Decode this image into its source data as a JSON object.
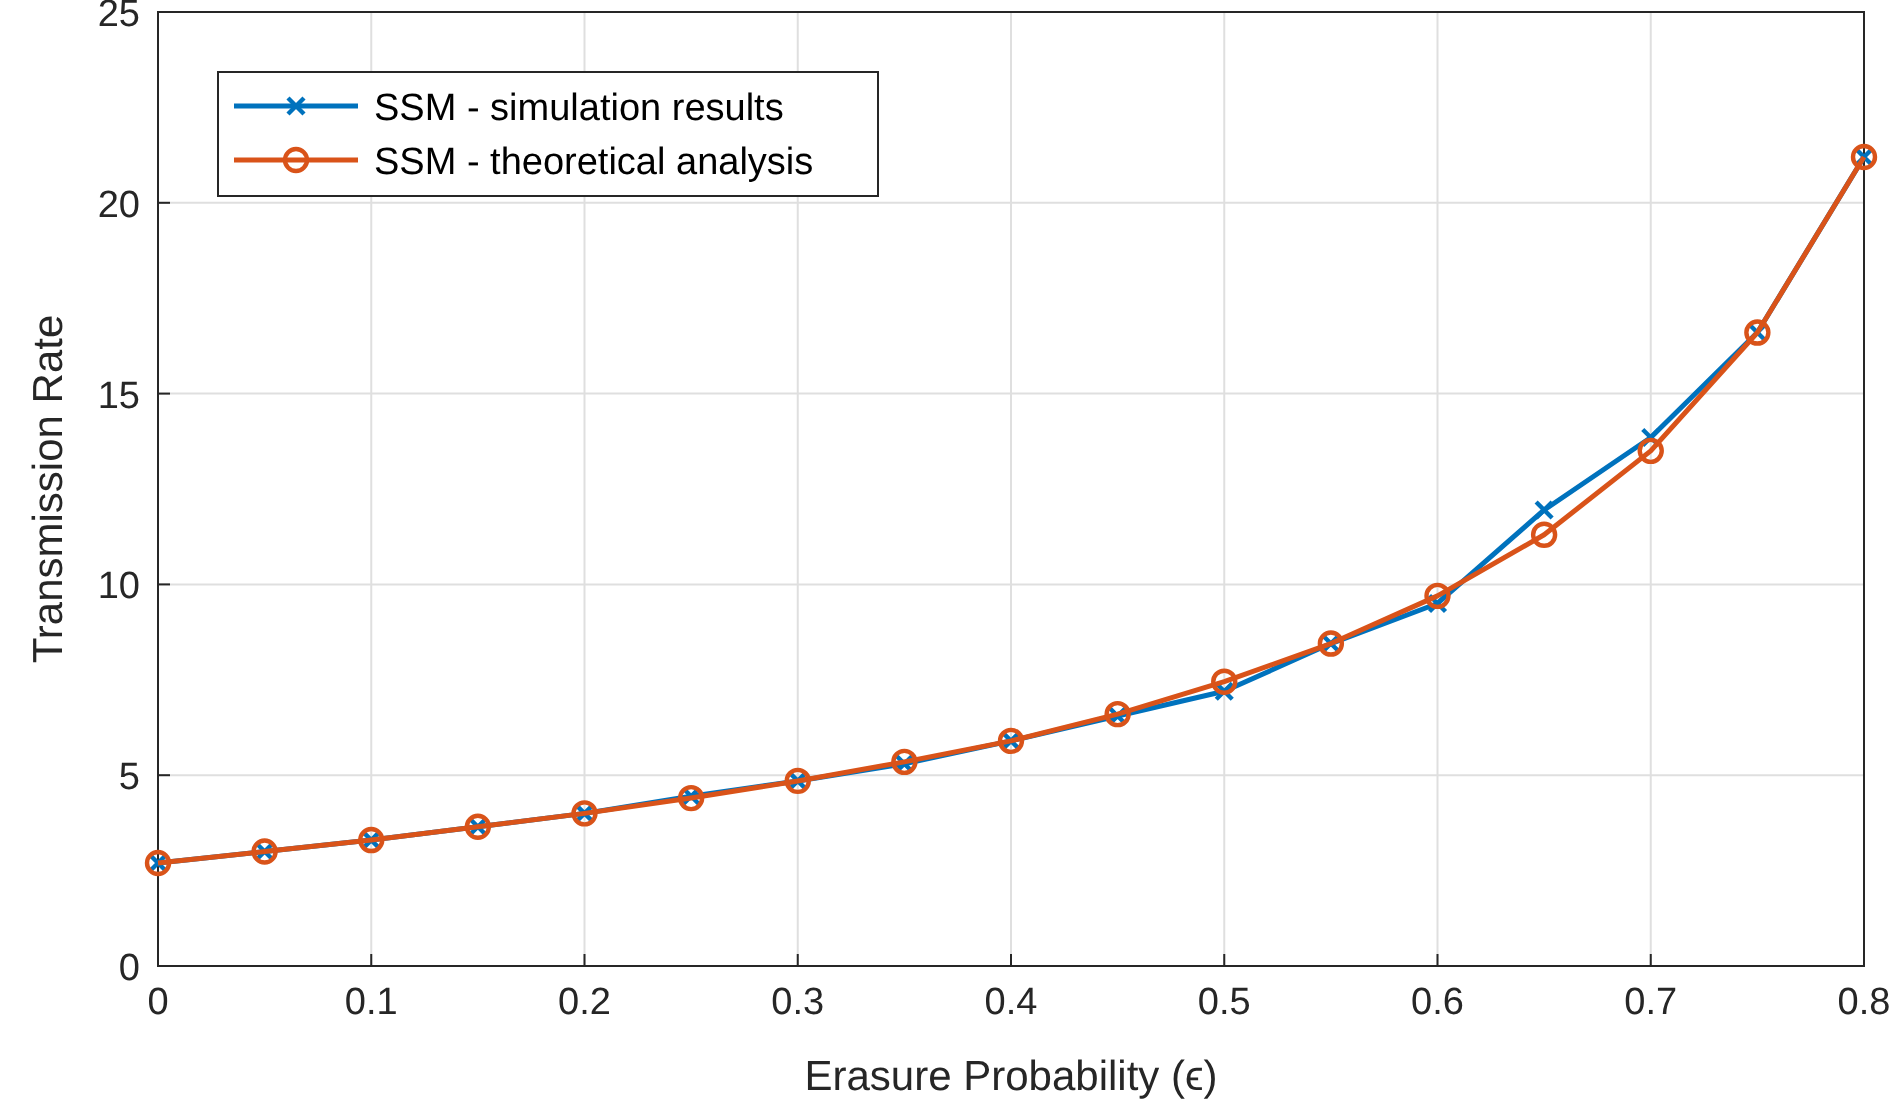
{
  "chart_data": {
    "type": "line",
    "xlabel": "Erasure Probability (ϵ)",
    "ylabel": "Transmission Rate",
    "x": [
      0,
      0.05,
      0.1,
      0.15,
      0.2,
      0.25,
      0.3,
      0.35,
      0.4,
      0.45,
      0.5,
      0.55,
      0.6,
      0.65,
      0.7,
      0.75,
      0.8
    ],
    "series": [
      {
        "name": "SSM - simulation results",
        "color": "#0072bd",
        "marker": "cross",
        "values": [
          2.7,
          3.0,
          3.3,
          3.65,
          4.0,
          4.45,
          4.85,
          5.3,
          5.9,
          6.55,
          7.2,
          8.45,
          9.5,
          11.95,
          13.85,
          16.6,
          21.2
        ]
      },
      {
        "name": "SSM - theoretical analysis",
        "color": "#d95319",
        "marker": "circle",
        "values": [
          2.7,
          3.0,
          3.3,
          3.65,
          4.0,
          4.4,
          4.85,
          5.35,
          5.9,
          6.6,
          7.45,
          8.45,
          9.7,
          11.3,
          13.5,
          16.6,
          21.2
        ]
      }
    ],
    "xlim": [
      0,
      0.8
    ],
    "xticks": [
      0,
      0.1,
      0.2,
      0.3,
      0.4,
      0.5,
      0.6,
      0.7,
      0.8
    ],
    "ylim": [
      0,
      25
    ],
    "yticks": [
      0,
      5,
      10,
      15,
      20,
      25
    ],
    "grid": true,
    "legend": "top left",
    "line_style": "solid"
  }
}
